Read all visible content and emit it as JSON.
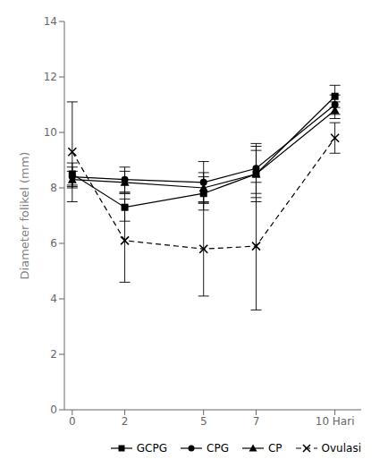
{
  "chart_data": {
    "type": "line",
    "x": [
      0,
      2,
      5,
      7,
      10
    ],
    "series": [
      {
        "name": "GCPG",
        "color": "#000000",
        "marker": "square",
        "line_style": "solid",
        "values": [
          8.5,
          7.3,
          7.8,
          8.5,
          11.3
        ],
        "error": [
          0.4,
          0.5,
          0.6,
          1.0,
          0.4
        ]
      },
      {
        "name": "CPG",
        "color": "#000000",
        "marker": "circle",
        "line_style": "solid",
        "values": [
          8.4,
          8.3,
          8.2,
          8.7,
          11.0
        ],
        "error": [
          0.35,
          0.45,
          0.75,
          0.9,
          0.35
        ]
      },
      {
        "name": "CP",
        "color": "#000000",
        "marker": "triangle",
        "line_style": "solid",
        "values": [
          8.3,
          8.2,
          8.0,
          8.5,
          10.8
        ],
        "error": [
          0.3,
          0.4,
          0.55,
          0.85,
          0.3
        ]
      },
      {
        "name": "Ovulasi",
        "color": "#000000",
        "marker": "x",
        "line_style": "dashed",
        "values": [
          9.3,
          6.1,
          5.8,
          5.9,
          9.8
        ],
        "error": [
          1.8,
          1.5,
          1.7,
          2.3,
          0.55
        ]
      }
    ],
    "xlim": [
      -0.3,
      11.0
    ],
    "ylim": [
      0,
      14
    ],
    "xticks": [
      0,
      2,
      5,
      7,
      {
        "value": 10,
        "label": "10 Hari"
      }
    ],
    "yticks": [
      0,
      2,
      4,
      6,
      8,
      10,
      12,
      14
    ],
    "ylabel": "Diameter folikel (mm)",
    "legend": "lower right",
    "grid": false
  }
}
